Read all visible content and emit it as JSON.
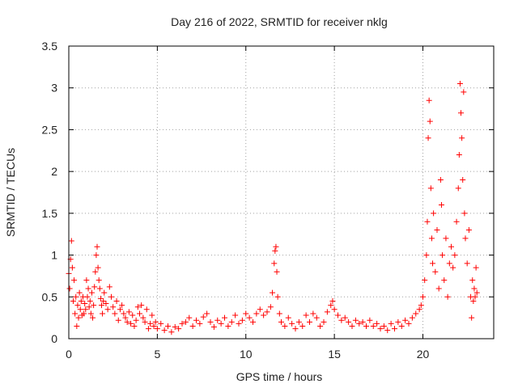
{
  "chart_data": {
    "type": "scatter",
    "title": "Day 216 of 2022, SRMTID for receiver nklg",
    "xlabel": "GPS time / hours",
    "ylabel": "SRMTID / TECUs",
    "xlim": [
      0,
      24
    ],
    "ylim": [
      0,
      3.5
    ],
    "xticks": [
      0,
      5,
      10,
      15,
      20
    ],
    "xtick_labels": [
      "0",
      "5",
      "10",
      "15",
      "20"
    ],
    "yticks": [
      0,
      0.5,
      1,
      1.5,
      2,
      2.5,
      3,
      3.5
    ],
    "ytick_labels": [
      "0",
      "0.5",
      "1",
      "1.5",
      "2",
      "2.5",
      "3",
      "3.5"
    ],
    "grid": true,
    "marker": "+",
    "series": [
      {
        "name": "SRMTID",
        "color": "#ff0000",
        "points": [
          [
            0.0,
            0.78
          ],
          [
            0.05,
            0.6
          ],
          [
            0.1,
            0.95
          ],
          [
            0.15,
            1.17
          ],
          [
            0.2,
            0.85
          ],
          [
            0.25,
            0.45
          ],
          [
            0.3,
            0.7
          ],
          [
            0.35,
            0.3
          ],
          [
            0.4,
            0.5
          ],
          [
            0.45,
            0.15
          ],
          [
            0.5,
            0.4
          ],
          [
            0.55,
            0.25
          ],
          [
            0.6,
            0.55
          ],
          [
            0.65,
            0.35
          ],
          [
            0.7,
            0.45
          ],
          [
            0.75,
            0.28
          ],
          [
            0.8,
            0.5
          ],
          [
            0.85,
            0.3
          ],
          [
            0.9,
            0.42
          ],
          [
            0.95,
            0.35
          ],
          [
            1.0,
            0.7
          ],
          [
            1.05,
            0.5
          ],
          [
            1.1,
            0.6
          ],
          [
            1.15,
            0.38
          ],
          [
            1.2,
            0.45
          ],
          [
            1.25,
            0.3
          ],
          [
            1.3,
            0.55
          ],
          [
            1.35,
            0.25
          ],
          [
            1.4,
            0.4
          ],
          [
            1.45,
            0.62
          ],
          [
            1.5,
            0.8
          ],
          [
            1.55,
            1.0
          ],
          [
            1.6,
            1.1
          ],
          [
            1.65,
            0.85
          ],
          [
            1.7,
            0.7
          ],
          [
            1.75,
            0.6
          ],
          [
            1.8,
            0.48
          ],
          [
            1.85,
            0.4
          ],
          [
            1.9,
            0.3
          ],
          [
            1.95,
            0.45
          ],
          [
            2.0,
            0.55
          ],
          [
            2.1,
            0.42
          ],
          [
            2.2,
            0.35
          ],
          [
            2.3,
            0.62
          ],
          [
            2.4,
            0.5
          ],
          [
            2.5,
            0.38
          ],
          [
            2.6,
            0.3
          ],
          [
            2.7,
            0.45
          ],
          [
            2.8,
            0.22
          ],
          [
            2.9,
            0.35
          ],
          [
            3.0,
            0.4
          ],
          [
            3.1,
            0.3
          ],
          [
            3.2,
            0.25
          ],
          [
            3.3,
            0.2
          ],
          [
            3.4,
            0.32
          ],
          [
            3.5,
            0.18
          ],
          [
            3.6,
            0.28
          ],
          [
            3.7,
            0.15
          ],
          [
            3.8,
            0.22
          ],
          [
            3.9,
            0.38
          ],
          [
            4.0,
            0.3
          ],
          [
            4.1,
            0.4
          ],
          [
            4.2,
            0.25
          ],
          [
            4.3,
            0.2
          ],
          [
            4.4,
            0.35
          ],
          [
            4.5,
            0.12
          ],
          [
            4.6,
            0.18
          ],
          [
            4.7,
            0.28
          ],
          [
            4.8,
            0.15
          ],
          [
            4.9,
            0.2
          ],
          [
            5.0,
            0.12
          ],
          [
            5.2,
            0.18
          ],
          [
            5.4,
            0.1
          ],
          [
            5.6,
            0.15
          ],
          [
            5.8,
            0.08
          ],
          [
            6.0,
            0.14
          ],
          [
            6.2,
            0.12
          ],
          [
            6.4,
            0.18
          ],
          [
            6.6,
            0.2
          ],
          [
            6.8,
            0.25
          ],
          [
            7.0,
            0.15
          ],
          [
            7.2,
            0.22
          ],
          [
            7.4,
            0.18
          ],
          [
            7.6,
            0.26
          ],
          [
            7.8,
            0.3
          ],
          [
            8.0,
            0.2
          ],
          [
            8.2,
            0.14
          ],
          [
            8.4,
            0.22
          ],
          [
            8.6,
            0.18
          ],
          [
            8.8,
            0.25
          ],
          [
            9.0,
            0.15
          ],
          [
            9.2,
            0.2
          ],
          [
            9.4,
            0.28
          ],
          [
            9.6,
            0.18
          ],
          [
            9.8,
            0.22
          ],
          [
            10.0,
            0.3
          ],
          [
            10.2,
            0.25
          ],
          [
            10.4,
            0.2
          ],
          [
            10.6,
            0.3
          ],
          [
            10.8,
            0.35
          ],
          [
            11.0,
            0.28
          ],
          [
            11.2,
            0.32
          ],
          [
            11.4,
            0.38
          ],
          [
            11.5,
            0.55
          ],
          [
            11.6,
            0.9
          ],
          [
            11.65,
            1.05
          ],
          [
            11.7,
            1.1
          ],
          [
            11.75,
            0.8
          ],
          [
            11.8,
            0.5
          ],
          [
            11.9,
            0.3
          ],
          [
            12.0,
            0.2
          ],
          [
            12.2,
            0.15
          ],
          [
            12.4,
            0.25
          ],
          [
            12.6,
            0.18
          ],
          [
            12.8,
            0.12
          ],
          [
            13.0,
            0.2
          ],
          [
            13.2,
            0.15
          ],
          [
            13.4,
            0.28
          ],
          [
            13.6,
            0.2
          ],
          [
            13.8,
            0.3
          ],
          [
            14.0,
            0.25
          ],
          [
            14.2,
            0.15
          ],
          [
            14.4,
            0.2
          ],
          [
            14.6,
            0.32
          ],
          [
            14.8,
            0.4
          ],
          [
            14.9,
            0.45
          ],
          [
            15.0,
            0.35
          ],
          [
            15.2,
            0.28
          ],
          [
            15.4,
            0.22
          ],
          [
            15.6,
            0.25
          ],
          [
            15.8,
            0.2
          ],
          [
            16.0,
            0.15
          ],
          [
            16.2,
            0.22
          ],
          [
            16.4,
            0.18
          ],
          [
            16.6,
            0.2
          ],
          [
            16.8,
            0.15
          ],
          [
            17.0,
            0.22
          ],
          [
            17.2,
            0.15
          ],
          [
            17.4,
            0.18
          ],
          [
            17.6,
            0.12
          ],
          [
            17.8,
            0.15
          ],
          [
            18.0,
            0.1
          ],
          [
            18.2,
            0.18
          ],
          [
            18.4,
            0.12
          ],
          [
            18.6,
            0.2
          ],
          [
            18.8,
            0.15
          ],
          [
            19.0,
            0.22
          ],
          [
            19.2,
            0.18
          ],
          [
            19.4,
            0.25
          ],
          [
            19.6,
            0.3
          ],
          [
            19.8,
            0.35
          ],
          [
            19.9,
            0.4
          ],
          [
            20.0,
            0.5
          ],
          [
            20.1,
            0.7
          ],
          [
            20.2,
            1.0
          ],
          [
            20.25,
            1.4
          ],
          [
            20.3,
            2.4
          ],
          [
            20.35,
            2.85
          ],
          [
            20.4,
            2.6
          ],
          [
            20.45,
            1.8
          ],
          [
            20.5,
            1.2
          ],
          [
            20.55,
            0.9
          ],
          [
            20.6,
            1.5
          ],
          [
            20.7,
            0.8
          ],
          [
            20.8,
            1.3
          ],
          [
            20.9,
            0.6
          ],
          [
            21.0,
            1.9
          ],
          [
            21.05,
            1.6
          ],
          [
            21.1,
            1.0
          ],
          [
            21.2,
            0.7
          ],
          [
            21.3,
            1.2
          ],
          [
            21.4,
            0.5
          ],
          [
            21.5,
            0.9
          ],
          [
            21.6,
            1.1
          ],
          [
            21.7,
            0.85
          ],
          [
            21.8,
            1.0
          ],
          [
            21.9,
            1.4
          ],
          [
            22.0,
            1.8
          ],
          [
            22.05,
            2.2
          ],
          [
            22.1,
            3.05
          ],
          [
            22.15,
            2.7
          ],
          [
            22.2,
            2.4
          ],
          [
            22.25,
            1.9
          ],
          [
            22.3,
            2.95
          ],
          [
            22.35,
            1.5
          ],
          [
            22.4,
            1.2
          ],
          [
            22.5,
            0.9
          ],
          [
            22.6,
            1.3
          ],
          [
            22.7,
            0.5
          ],
          [
            22.75,
            0.25
          ],
          [
            22.8,
            0.7
          ],
          [
            22.85,
            0.45
          ],
          [
            22.9,
            0.6
          ],
          [
            22.95,
            0.5
          ],
          [
            23.0,
            0.85
          ],
          [
            23.05,
            0.55
          ]
        ]
      }
    ]
  }
}
